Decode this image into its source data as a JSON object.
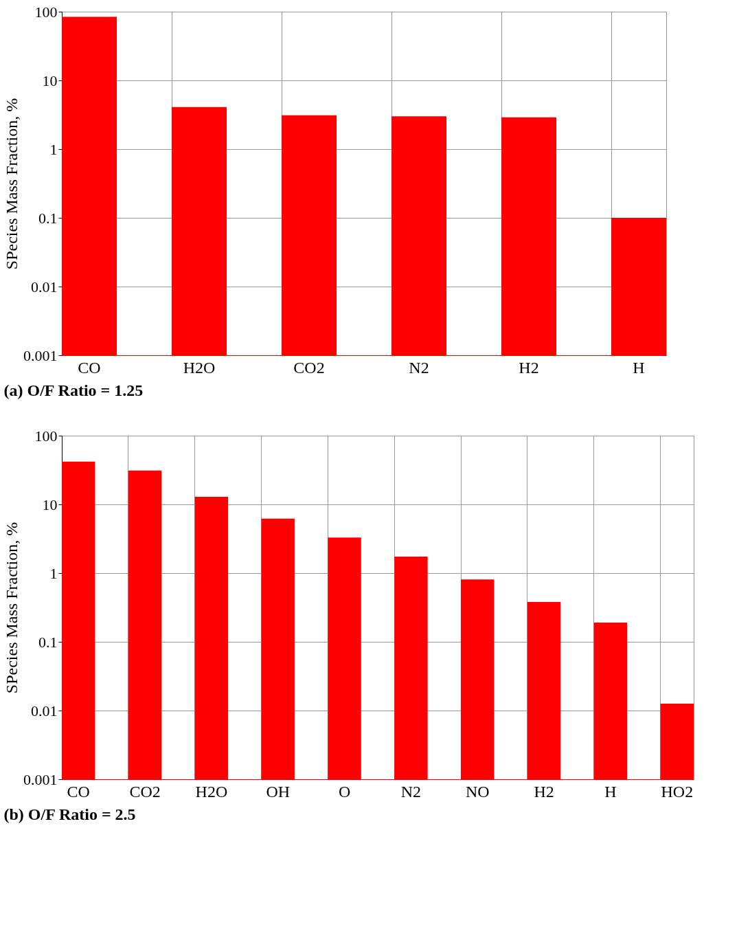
{
  "chart_data": [
    {
      "type": "bar",
      "title": "(a) O/F Ratio = 1.25",
      "ylabel": "SPecies Mass Fraction, %",
      "categories": [
        "CO",
        "H2O",
        "CO2",
        "N2",
        "H2",
        "H"
      ],
      "series": [
        {
          "color": "#ff0000",
          "values": [
            84,
            4.1,
            3.1,
            3.0,
            2.9,
            0.1
          ]
        }
      ],
      "log": true,
      "ylim": [
        0.001,
        100
      ],
      "yticks": [
        0.001,
        0.01,
        0.1,
        1,
        10,
        100
      ],
      "grid": true,
      "legend": false
    },
    {
      "type": "bar",
      "title": "(b) O/F Ratio = 2.5",
      "ylabel": "SPecies Mass Fraction, %",
      "categories": [
        "CO",
        "CO2",
        "H2O",
        "OH",
        "O",
        "N2",
        "NO",
        "H2",
        "H",
        "HO2"
      ],
      "series": [
        {
          "color": "#ff0000",
          "values": [
            42,
            31,
            12.9,
            6.2,
            3.3,
            1.74,
            0.81,
            0.38,
            0.19,
            0.0126
          ]
        }
      ],
      "log": true,
      "ylim": [
        0.001,
        100
      ],
      "yticks": [
        0.001,
        0.01,
        0.1,
        1,
        10,
        100
      ],
      "grid": true,
      "legend": false
    }
  ]
}
